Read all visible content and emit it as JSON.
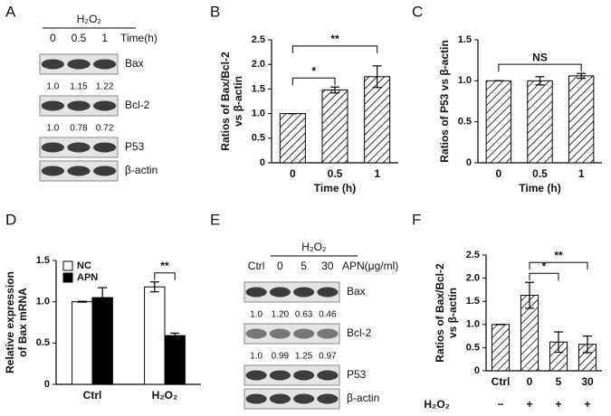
{
  "blots": [
    {
      "letter": "A",
      "treatment": "H₂O₂",
      "lanes": [
        "0",
        "0.5",
        "1"
      ],
      "lane_unit": "Time(h)",
      "rows": [
        {
          "name": "Bax",
          "ratios": [
            "1.0",
            "1.15",
            "1.22"
          ]
        },
        {
          "name": "Bcl-2",
          "ratios": [
            "1.0",
            "0.78",
            "0.72"
          ]
        },
        {
          "name": "P53"
        },
        {
          "name": "β-actin"
        }
      ]
    },
    {
      "letter": "E",
      "treatment": "H₂O₂",
      "lanes": [
        "Ctrl",
        "0",
        "5",
        "30"
      ],
      "lane_unit": "APN(μg/ml)",
      "rows": [
        {
          "name": "Bax",
          "ratios": [
            "1.0",
            "1.20",
            "0.63",
            "0.46"
          ]
        },
        {
          "name": "Bcl-2",
          "ratios": [
            "1.0",
            "0.99",
            "1.25",
            "0.97"
          ]
        },
        {
          "name": "P53"
        },
        {
          "name": "β-actin"
        }
      ]
    }
  ],
  "chart_data": [
    {
      "type": "bar",
      "letter": "B",
      "ylabel": [
        "Ratios of Bax/Bcl-2",
        "vs β-actin"
      ],
      "xlabel": "Time (h)",
      "categories": [
        "0",
        "0.5",
        "1"
      ],
      "fill_pattern": "hatch",
      "series": [
        {
          "color": "#000000",
          "values": [
            1.0,
            1.48,
            1.75
          ],
          "errors": [
            0,
            0.06,
            0.22
          ]
        }
      ],
      "ylim": [
        0,
        2.5
      ],
      "yticks": [
        0,
        0.5,
        {
          "value": 1,
          "label": "1.0"
        },
        1.5,
        {
          "value": 2,
          "label": "2.0"
        },
        2.5
      ],
      "annotations": [
        {
          "text": "*",
          "between": [
            "0",
            "0.5"
          ]
        },
        {
          "text": "**",
          "between": [
            "0",
            "1"
          ]
        }
      ]
    },
    {
      "type": "bar",
      "letter": "C",
      "ylabel": [
        "Ratios of P53 vs β-actin"
      ],
      "xlabel": "Time (h)",
      "categories": [
        "0",
        "0.5",
        "1"
      ],
      "fill_pattern": "hatch",
      "series": [
        {
          "color": "#000000",
          "values": [
            1.0,
            1.0,
            1.06
          ],
          "errors": [
            0,
            0.05,
            0.03
          ]
        }
      ],
      "ylim": [
        0,
        1.5
      ],
      "yticks": [
        0,
        0.5,
        {
          "value": 1,
          "label": "1.0"
        },
        1.5
      ],
      "annotations": [
        {
          "text": "NS",
          "between": [
            "0",
            "1"
          ]
        }
      ]
    },
    {
      "type": "bar",
      "letter": "D",
      "ylabel": [
        "Relative expression",
        "of Bax mRNA"
      ],
      "categories": [
        "Ctrl",
        "H₂O₂"
      ],
      "legend": "upper left",
      "series": [
        {
          "name": "NC",
          "color": "#ffffff",
          "values": [
            1.0,
            1.18
          ],
          "errors": [
            0.005,
            0.06
          ]
        },
        {
          "name": "APN",
          "color": "#000000",
          "values": [
            1.05,
            0.59
          ],
          "errors": [
            0.12,
            0.03
          ]
        }
      ],
      "ylim": [
        0,
        1.5
      ],
      "yticks": [
        0,
        0.5,
        {
          "value": 1,
          "label": "1.0"
        },
        1.5
      ],
      "annotations": [
        {
          "text": "**",
          "between": [
            "H₂O₂"
          ]
        }
      ]
    },
    {
      "type": "bar",
      "letter": "F",
      "ylabel": [
        "Ratios of Bax/Bcl-2",
        "vs β-actin"
      ],
      "categories": [
        "Ctrl",
        "0",
        "5",
        "30"
      ],
      "fill_pattern": "hatch",
      "series": [
        {
          "color": "#000000",
          "values": [
            1.0,
            1.63,
            0.62,
            0.57
          ],
          "errors": [
            0,
            0.28,
            0.22,
            0.18
          ]
        }
      ],
      "ylim": [
        0,
        2.5
      ],
      "yticks": [
        0,
        0.5,
        {
          "value": 1,
          "label": "1.0"
        },
        1.5,
        {
          "value": 2,
          "label": "2.0"
        },
        2.5
      ],
      "annotations": [
        {
          "text": "*",
          "between": [
            "0",
            "5"
          ]
        },
        {
          "text": "**",
          "between": [
            "0",
            "30"
          ]
        }
      ],
      "treatment": {
        "label": "H₂O₂",
        "marks": [
          "−",
          "+",
          "+",
          "+"
        ]
      }
    }
  ]
}
